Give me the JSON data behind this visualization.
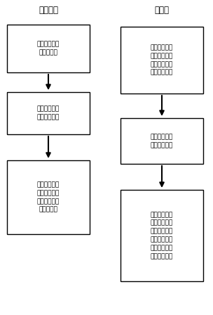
{
  "title_left": "分检法：",
  "title_right": "分析：",
  "left_boxes": [
    "各类放射源进\n行登清测量",
    "选取放射源诺\n斯东孔的诺孔",
    "求取各测段内\n各类放射源用\n于比较的标准\n均值及方差"
  ],
  "right_boxes": [
    "将待分检的放\n射源在选取的\n测段内进行放\n射性定量测量",
    "求取各测段内\n均值及其方差",
    "将求取的各测\n段内均匀值及\n其方差与标准\n均值及方差比\n较、实现放射\n活性的分检。"
  ],
  "bg_color": "#ffffff",
  "box_color": "#ffffff",
  "box_edge_color": "#000000",
  "text_color": "#000000",
  "arrow_color": "#000000",
  "font_size": 6.5,
  "title_font_size": 8.5,
  "fig_width": 3.04,
  "fig_height": 4.48,
  "dpi": 100
}
